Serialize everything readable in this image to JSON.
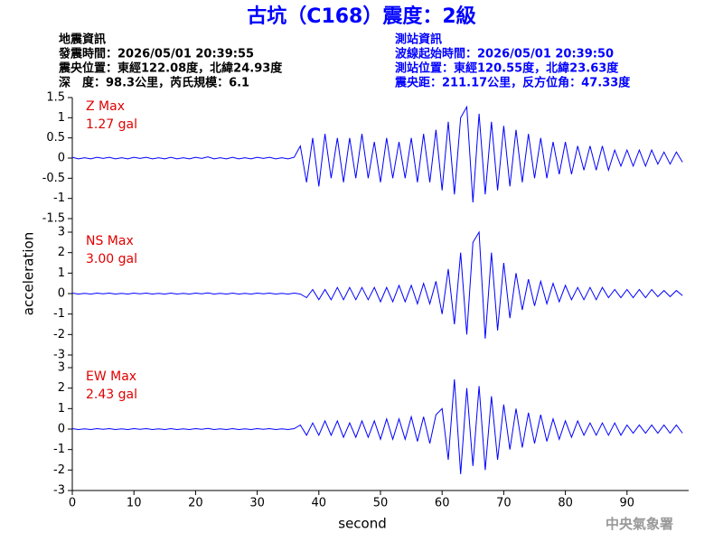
{
  "header": {
    "title": "古坑（C168）震度：2級",
    "left": [
      "地震資訊",
      "發震時間：2026/05/01 20:39:55",
      "震央位置：東經122.08度，北緯24.93度",
      "深　度：98.3公里，芮氏規模：6.1"
    ],
    "right": [
      "測站資訊",
      "波線起始時間：2026/05/01 20:39:50",
      "測站位置：東經120.55度，北緯23.63度",
      "震央距：211.17公里，反方位角：47.33度"
    ]
  },
  "ylabel": "acceleration",
  "footer": "中央氣象署",
  "chart_data": [
    {
      "type": "line",
      "annotations": [
        "Z Max",
        "1.27 gal"
      ],
      "color": "#0000ff",
      "xlim": [
        0,
        100
      ],
      "ylim": [
        -1.5,
        1.5
      ],
      "yticks": [
        -1.5,
        -1,
        -0.5,
        0,
        0.5,
        1,
        1.5
      ],
      "x": [
        0,
        1,
        2,
        3,
        4,
        5,
        6,
        7,
        8,
        9,
        10,
        11,
        12,
        13,
        14,
        15,
        16,
        17,
        18,
        19,
        20,
        21,
        22,
        23,
        24,
        25,
        26,
        27,
        28,
        29,
        30,
        31,
        32,
        33,
        34,
        35,
        36,
        37,
        38,
        39,
        40,
        41,
        42,
        43,
        44,
        45,
        46,
        47,
        48,
        49,
        50,
        51,
        52,
        53,
        54,
        55,
        56,
        57,
        58,
        59,
        60,
        61,
        62,
        63,
        64,
        65,
        66,
        67,
        68,
        69,
        70,
        71,
        72,
        73,
        74,
        75,
        76,
        77,
        78,
        79,
        80,
        81,
        82,
        83,
        84,
        85,
        86,
        87,
        88,
        89,
        90,
        91,
        92,
        93,
        94,
        95,
        96,
        97,
        98,
        99
      ],
      "values": [
        0.02,
        -0.02,
        0.01,
        -0.02,
        0.02,
        -0.01,
        0.02,
        -0.02,
        0.01,
        -0.02,
        0.02,
        -0.01,
        0.02,
        -0.02,
        0.01,
        -0.02,
        0.02,
        -0.02,
        0.01,
        -0.02,
        0.02,
        -0.01,
        0.03,
        -0.02,
        0.01,
        -0.02,
        0.02,
        -0.02,
        0.01,
        -0.02,
        0.02,
        -0.01,
        0.02,
        -0.02,
        0.01,
        -0.02,
        0.02,
        0.3,
        -0.6,
        0.5,
        -0.7,
        0.6,
        -0.5,
        0.5,
        -0.6,
        0.5,
        -0.5,
        0.6,
        -0.5,
        0.4,
        -0.6,
        0.5,
        -0.5,
        0.4,
        -0.5,
        0.5,
        -0.6,
        0.6,
        -0.6,
        0.7,
        -0.8,
        0.9,
        -0.9,
        1.0,
        1.27,
        -1.1,
        1.1,
        -0.9,
        0.9,
        -0.8,
        0.8,
        -0.7,
        0.7,
        -0.6,
        0.6,
        -0.5,
        0.5,
        -0.5,
        0.4,
        -0.4,
        0.4,
        -0.4,
        0.3,
        -0.3,
        0.3,
        -0.3,
        0.3,
        -0.3,
        0.2,
        -0.2,
        0.2,
        -0.2,
        0.2,
        -0.2,
        0.2,
        -0.15,
        0.15,
        -0.15,
        0.15,
        -0.1
      ]
    },
    {
      "type": "line",
      "annotations": [
        "NS Max",
        "3.00 gal"
      ],
      "color": "#0000ff",
      "xlim": [
        0,
        100
      ],
      "ylim": [
        -3,
        3
      ],
      "yticks": [
        -3,
        -2,
        -1,
        0,
        1,
        2,
        3
      ],
      "x": [
        0,
        1,
        2,
        3,
        4,
        5,
        6,
        7,
        8,
        9,
        10,
        11,
        12,
        13,
        14,
        15,
        16,
        17,
        18,
        19,
        20,
        21,
        22,
        23,
        24,
        25,
        26,
        27,
        28,
        29,
        30,
        31,
        32,
        33,
        34,
        35,
        36,
        37,
        38,
        39,
        40,
        41,
        42,
        43,
        44,
        45,
        46,
        47,
        48,
        49,
        50,
        51,
        52,
        53,
        54,
        55,
        56,
        57,
        58,
        59,
        60,
        61,
        62,
        63,
        64,
        65,
        66,
        67,
        68,
        69,
        70,
        71,
        72,
        73,
        74,
        75,
        76,
        77,
        78,
        79,
        80,
        81,
        82,
        83,
        84,
        85,
        86,
        87,
        88,
        89,
        90,
        91,
        92,
        93,
        94,
        95,
        96,
        97,
        98,
        99
      ],
      "values": [
        0.02,
        -0.02,
        0.01,
        -0.02,
        0.02,
        -0.01,
        0.02,
        -0.02,
        0.01,
        -0.02,
        0.02,
        -0.01,
        0.02,
        -0.02,
        0.01,
        -0.02,
        0.02,
        -0.02,
        0.01,
        -0.02,
        0.02,
        -0.01,
        0.03,
        -0.02,
        0.01,
        -0.02,
        0.02,
        -0.02,
        0.01,
        -0.02,
        0.02,
        -0.01,
        0.02,
        -0.02,
        0.01,
        -0.02,
        0.02,
        -0.02,
        -0.2,
        0.2,
        -0.3,
        0.2,
        -0.3,
        0.3,
        -0.3,
        0.3,
        -0.3,
        0.3,
        -0.3,
        0.3,
        -0.4,
        0.3,
        -0.4,
        0.4,
        -0.4,
        0.4,
        -0.5,
        0.5,
        -0.5,
        0.6,
        -1.0,
        1.2,
        -1.5,
        2.0,
        -2.0,
        2.5,
        3.0,
        -2.2,
        2.0,
        -1.8,
        1.5,
        -1.2,
        1.0,
        -0.8,
        0.7,
        -0.6,
        0.6,
        -0.5,
        0.5,
        -0.4,
        0.4,
        -0.3,
        0.3,
        -0.3,
        0.3,
        -0.3,
        0.3,
        -0.2,
        0.2,
        -0.2,
        0.2,
        -0.2,
        0.2,
        -0.2,
        0.2,
        -0.15,
        0.15,
        -0.15,
        0.15,
        -0.1
      ]
    },
    {
      "type": "line",
      "annotations": [
        "EW Max",
        "2.43 gal"
      ],
      "color": "#0000ff",
      "xlabel": "second",
      "xlim": [
        0,
        100
      ],
      "ylim": [
        -3,
        3
      ],
      "yticks": [
        -3,
        -2,
        -1,
        0,
        1,
        2,
        3
      ],
      "xticks": [
        0,
        10,
        20,
        30,
        40,
        50,
        60,
        70,
        80,
        90
      ],
      "x": [
        0,
        1,
        2,
        3,
        4,
        5,
        6,
        7,
        8,
        9,
        10,
        11,
        12,
        13,
        14,
        15,
        16,
        17,
        18,
        19,
        20,
        21,
        22,
        23,
        24,
        25,
        26,
        27,
        28,
        29,
        30,
        31,
        32,
        33,
        34,
        35,
        36,
        37,
        38,
        39,
        40,
        41,
        42,
        43,
        44,
        45,
        46,
        47,
        48,
        49,
        50,
        51,
        52,
        53,
        54,
        55,
        56,
        57,
        58,
        59,
        60,
        61,
        62,
        63,
        64,
        65,
        66,
        67,
        68,
        69,
        70,
        71,
        72,
        73,
        74,
        75,
        76,
        77,
        78,
        79,
        80,
        81,
        82,
        83,
        84,
        85,
        86,
        87,
        88,
        89,
        90,
        91,
        92,
        93,
        94,
        95,
        96,
        97,
        98,
        99
      ],
      "values": [
        0.02,
        -0.02,
        0.01,
        -0.02,
        0.02,
        -0.01,
        0.02,
        -0.02,
        0.01,
        -0.02,
        0.02,
        -0.01,
        0.02,
        -0.02,
        0.01,
        -0.02,
        0.02,
        -0.02,
        0.01,
        -0.02,
        0.02,
        -0.01,
        0.03,
        -0.02,
        0.01,
        -0.02,
        0.02,
        -0.02,
        0.01,
        -0.02,
        0.02,
        -0.01,
        0.02,
        -0.02,
        0.01,
        -0.02,
        0.02,
        0.2,
        -0.3,
        0.3,
        -0.3,
        0.4,
        -0.3,
        0.4,
        -0.4,
        0.3,
        -0.4,
        0.4,
        -0.4,
        0.4,
        -0.5,
        0.5,
        -0.5,
        0.5,
        -0.5,
        0.6,
        -0.6,
        0.6,
        -0.7,
        0.7,
        1.0,
        -1.5,
        2.43,
        -2.2,
        2.0,
        -1.8,
        2.1,
        -2.0,
        1.6,
        -1.5,
        1.2,
        -1.0,
        1.0,
        -0.9,
        0.8,
        -0.7,
        0.7,
        -0.6,
        0.5,
        -0.5,
        0.4,
        -0.4,
        0.4,
        -0.3,
        0.3,
        -0.3,
        0.3,
        -0.3,
        0.3,
        -0.3,
        0.2,
        -0.2,
        0.2,
        -0.2,
        0.2,
        -0.2,
        0.2,
        -0.2,
        0.2,
        -0.2
      ]
    }
  ]
}
